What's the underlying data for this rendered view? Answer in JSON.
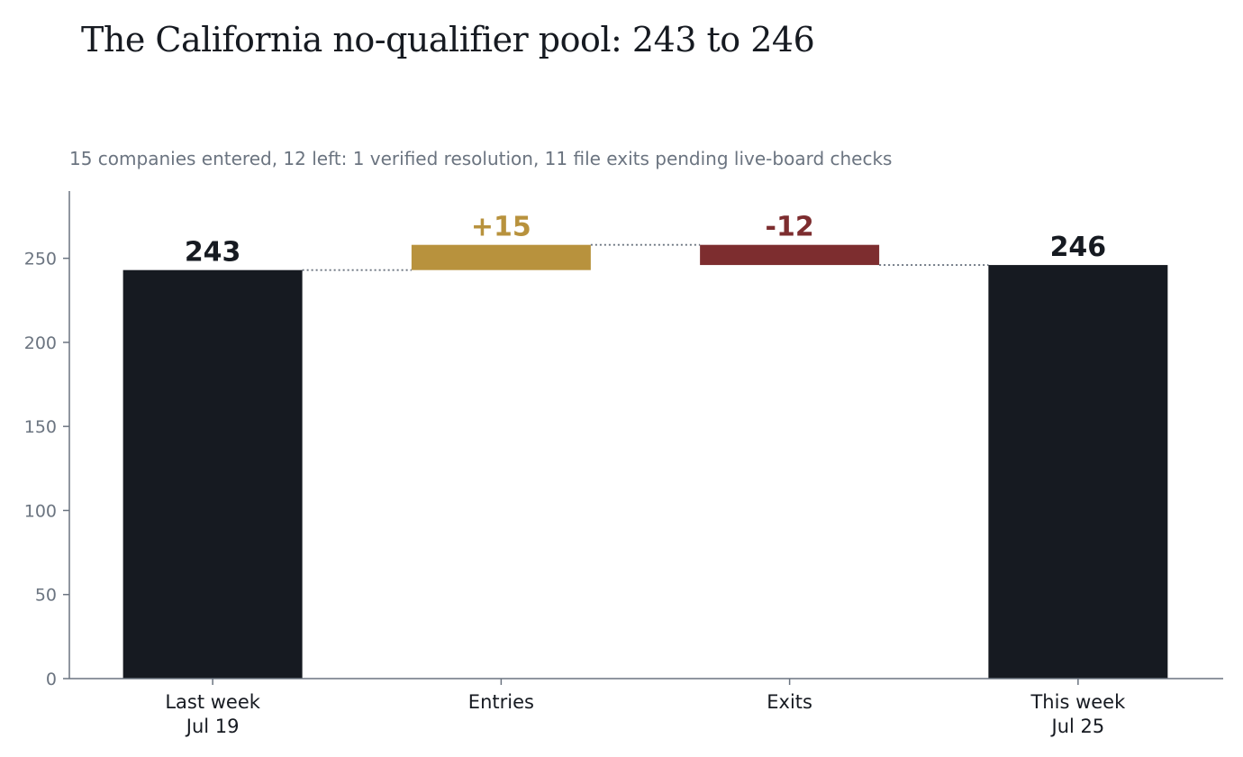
{
  "chart_data": {
    "type": "bar",
    "subtype": "waterfall",
    "title": "The California no-qualifier pool: 243 to 246",
    "subtitle": "15 companies entered, 12 left: 1 verified resolution, 11 file exits pending live-board checks",
    "categories": [
      [
        "Last week",
        "Jul 19"
      ],
      [
        "Entries"
      ],
      [
        "Exits"
      ],
      [
        "This week",
        "Jul 25"
      ]
    ],
    "steps": [
      {
        "kind": "total",
        "value": 243,
        "label": "243"
      },
      {
        "kind": "delta",
        "value": 15,
        "label": "+15"
      },
      {
        "kind": "delta",
        "value": -12,
        "label": "-12"
      },
      {
        "kind": "total",
        "value": 246,
        "label": "246"
      }
    ],
    "ylim": [
      0,
      290
    ],
    "yticks": [
      0,
      50,
      100,
      150,
      200,
      250
    ],
    "grid": false,
    "legend": "none",
    "colors": {
      "total": "#161a21",
      "increase": "#b8923d",
      "decrease": "#7d2d2f",
      "axis": "#6b7480",
      "connector": "#6b7480"
    }
  }
}
